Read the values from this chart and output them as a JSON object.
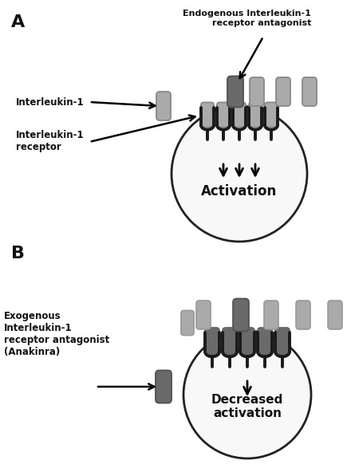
{
  "bg_color": "#ffffff",
  "label_color": "#111111",
  "il1_light": "#aaaaaa",
  "il1_dark": "#6a6a6a",
  "cell_face": "#f8f8f8",
  "cell_edge": "#222222",
  "rec_color": "#1a1a1a",
  "panel_A": "A",
  "panel_B": "B",
  "txt_endogenous": "Endogenous Interleukin-1\nreceptor antagonist",
  "txt_il1": "Interleukin-1",
  "txt_receptor": "Interleukin-1\nreceptor",
  "txt_activation": "Activation",
  "txt_exogenous": "Exogenous\nInterleukin-1\nreceptor antagonist\n(Anakinra)",
  "txt_decreased": "Decreased\nactivation",
  "figw": 4.4,
  "figh": 5.87,
  "dpi": 100
}
